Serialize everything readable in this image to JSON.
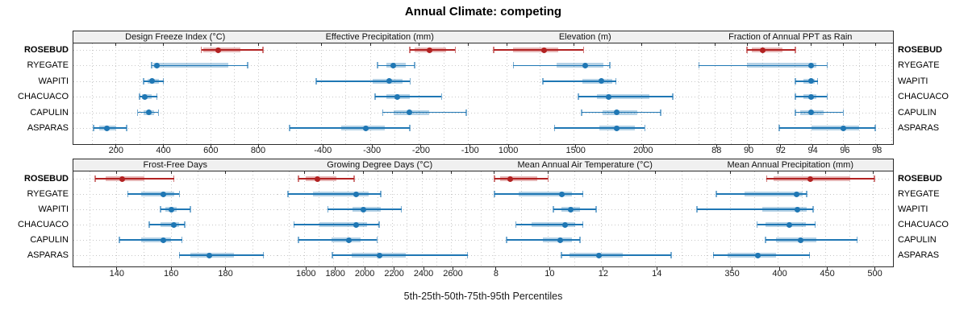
{
  "title": "Annual Climate: competing",
  "caption": "5th-25th-50th-75th-95th Percentiles",
  "percentile_labels": [
    "5th",
    "25th",
    "50th",
    "75th",
    "95th"
  ],
  "sites": [
    "ROSEBUD",
    "RYEGATE",
    "WAPITI",
    "CHACUACO",
    "CAPULIN",
    "ASPARAS"
  ],
  "highlight_site": "ROSEBUD",
  "colors": {
    "highlight": "#B22222",
    "normal": "#1F77B4",
    "strip_bg": "#F0F0F0",
    "panel_border": "#2B2B2B",
    "grid": "#C8C8C8",
    "text": "#111111"
  },
  "chart_data": [
    {
      "type": "interval-dotplot",
      "title": "Design Freeze Index (°C)",
      "row": 0,
      "xlim": [
        20,
        880
      ],
      "ticks": [
        200,
        400,
        600,
        800
      ],
      "minor_step": 100,
      "series": [
        {
          "site": "ROSEBUD",
          "p": [
            560,
            570,
            630,
            725,
            820
          ]
        },
        {
          "site": "RYEGATE",
          "p": [
            350,
            357,
            371,
            675,
            755
          ]
        },
        {
          "site": "WAPITI",
          "p": [
            317,
            333,
            352,
            381,
            400
          ]
        },
        {
          "site": "CHACUACO",
          "p": [
            300,
            310,
            323,
            352,
            373
          ]
        },
        {
          "site": "CAPULIN",
          "p": [
            291,
            318,
            337,
            359,
            379
          ]
        },
        {
          "site": "ASPARAS",
          "p": [
            105,
            130,
            160,
            200,
            245
          ]
        }
      ]
    },
    {
      "type": "interval-dotplot",
      "title": "Effective Precipitation (mm)",
      "row": 0,
      "xlim": [
        -490,
        -75
      ],
      "ticks": [
        -400,
        -300,
        -200,
        -100
      ],
      "minor_step": 50,
      "series": [
        {
          "site": "ROSEBUD",
          "p": [
            -220,
            -210,
            -180,
            -145,
            -127
          ]
        },
        {
          "site": "RYEGATE",
          "p": [
            -285,
            -268,
            -253,
            -228,
            -210
          ]
        },
        {
          "site": "WAPITI",
          "p": [
            -410,
            -295,
            -262,
            -235,
            -219
          ]
        },
        {
          "site": "CHACUACO",
          "p": [
            -290,
            -268,
            -245,
            -220,
            -155
          ]
        },
        {
          "site": "CAPULIN",
          "p": [
            -275,
            -252,
            -221,
            -180,
            -105
          ]
        },
        {
          "site": "ASPARAS",
          "p": [
            -465,
            -360,
            -310,
            -270,
            -220
          ]
        }
      ]
    },
    {
      "type": "interval-dotplot",
      "title": "Elevation (m)",
      "row": 0,
      "xlim": [
        820,
        2330
      ],
      "ticks": [
        1000,
        1500,
        2000
      ],
      "minor_step": 250,
      "series": [
        {
          "site": "ROSEBUD",
          "p": [
            905,
            1050,
            1280,
            1380,
            1570
          ]
        },
        {
          "site": "RYEGATE",
          "p": [
            1050,
            1370,
            1580,
            1720,
            1765
          ]
        },
        {
          "site": "WAPITI",
          "p": [
            1270,
            1560,
            1700,
            1780,
            1810
          ]
        },
        {
          "site": "CHACUACO",
          "p": [
            1530,
            1670,
            1755,
            2060,
            2230
          ]
        },
        {
          "site": "CAPULIN",
          "p": [
            1555,
            1710,
            1815,
            1970,
            2140
          ]
        },
        {
          "site": "ASPARAS",
          "p": [
            1355,
            1690,
            1815,
            1950,
            2025
          ]
        }
      ]
    },
    {
      "type": "interval-dotplot",
      "title": "Fraction of Annual PPT as Rain",
      "row": 0,
      "xlim": [
        86.3,
        99
      ],
      "ticks": [
        88,
        90,
        92,
        94,
        96,
        98
      ],
      "minor_step": 1,
      "series": [
        {
          "site": "ROSEBUD",
          "p": [
            90,
            90.3,
            91,
            92.2,
            93
          ]
        },
        {
          "site": "RYEGATE",
          "p": [
            87,
            90,
            94,
            94.3,
            95
          ]
        },
        {
          "site": "WAPITI",
          "p": [
            93,
            93.5,
            94,
            94.2,
            94.4
          ]
        },
        {
          "site": "CHACUACO",
          "p": [
            93,
            93.5,
            94,
            94.3,
            95
          ]
        },
        {
          "site": "CAPULIN",
          "p": [
            93,
            93.3,
            94,
            94.8,
            96
          ]
        },
        {
          "site": "ASPARAS",
          "p": [
            92,
            94,
            96,
            97,
            98
          ]
        }
      ]
    },
    {
      "type": "interval-dotplot",
      "title": "Frost-Free Days",
      "row": 1,
      "xlim": [
        124,
        199
      ],
      "ticks": [
        140,
        160,
        180
      ],
      "minor_step": 10,
      "series": [
        {
          "site": "ROSEBUD",
          "p": [
            132,
            136,
            142,
            150,
            161
          ]
        },
        {
          "site": "RYEGATE",
          "p": [
            144,
            149,
            157,
            161,
            163
          ]
        },
        {
          "site": "WAPITI",
          "p": [
            156,
            158,
            160,
            162,
            167
          ]
        },
        {
          "site": "CHACUACO",
          "p": [
            152,
            156,
            161,
            163,
            165
          ]
        },
        {
          "site": "CAPULIN",
          "p": [
            141,
            149,
            157,
            160,
            164
          ]
        },
        {
          "site": "ASPARAS",
          "p": [
            163,
            167,
            174,
            183,
            194
          ]
        }
      ]
    },
    {
      "type": "interval-dotplot",
      "title": "Growing Degree Days (°C)",
      "row": 1,
      "xlim": [
        1415,
        2800
      ],
      "ticks": [
        1600,
        1800,
        2000,
        2200,
        2400,
        2600
      ],
      "minor_step": 100,
      "series": [
        {
          "site": "ROSEBUD",
          "p": [
            1560,
            1610,
            1690,
            1820,
            1940
          ]
        },
        {
          "site": "RYEGATE",
          "p": [
            1490,
            1660,
            1950,
            2040,
            2120
          ]
        },
        {
          "site": "WAPITI",
          "p": [
            1760,
            1930,
            2000,
            2120,
            2260
          ]
        },
        {
          "site": "CHACUACO",
          "p": [
            1530,
            1705,
            1955,
            2025,
            2110
          ]
        },
        {
          "site": "CAPULIN",
          "p": [
            1560,
            1785,
            1905,
            1985,
            2095
          ]
        },
        {
          "site": "ASPARAS",
          "p": [
            1790,
            1925,
            2110,
            2290,
            2710
          ]
        }
      ]
    },
    {
      "type": "interval-dotplot",
      "title": "Mean Annual Air Temperature (°C)",
      "row": 1,
      "xlim": [
        7.55,
        15.15
      ],
      "ticks": [
        8,
        10,
        12,
        14
      ],
      "minor_step": 1,
      "series": [
        {
          "site": "ROSEBUD",
          "p": [
            8.0,
            8.2,
            8.6,
            9.6,
            10.0
          ]
        },
        {
          "site": "RYEGATE",
          "p": [
            8.0,
            8.9,
            10.5,
            10.9,
            11.3
          ]
        },
        {
          "site": "WAPITI",
          "p": [
            10.2,
            10.5,
            10.85,
            11.2,
            11.8
          ]
        },
        {
          "site": "CHACUACO",
          "p": [
            8.8,
            9.4,
            10.65,
            11.0,
            11.3
          ]
        },
        {
          "site": "CAPULIN",
          "p": [
            8.45,
            9.8,
            10.45,
            10.9,
            11.2
          ]
        },
        {
          "site": "ASPARAS",
          "p": [
            10.5,
            10.8,
            11.9,
            12.8,
            14.6
          ]
        }
      ]
    },
    {
      "type": "interval-dotplot",
      "title": "Mean Annual Precipitation (mm)",
      "row": 1,
      "xlim": [
        305,
        519
      ],
      "ticks": [
        350,
        400,
        450,
        500
      ],
      "minor_step": 25,
      "series": [
        {
          "site": "ROSEBUD",
          "p": [
            388,
            395,
            434,
            476,
            501
          ]
        },
        {
          "site": "RYEGATE",
          "p": [
            335,
            365,
            419,
            426,
            430
          ]
        },
        {
          "site": "WAPITI",
          "p": [
            315,
            383,
            420,
            430,
            437
          ]
        },
        {
          "site": "CHACUACO",
          "p": [
            378,
            387,
            412,
            429,
            439
          ]
        },
        {
          "site": "CAPULIN",
          "p": [
            387,
            398,
            424,
            440,
            483
          ]
        },
        {
          "site": "ASPARAS",
          "p": [
            332,
            347,
            379,
            398,
            433
          ]
        }
      ]
    }
  ]
}
